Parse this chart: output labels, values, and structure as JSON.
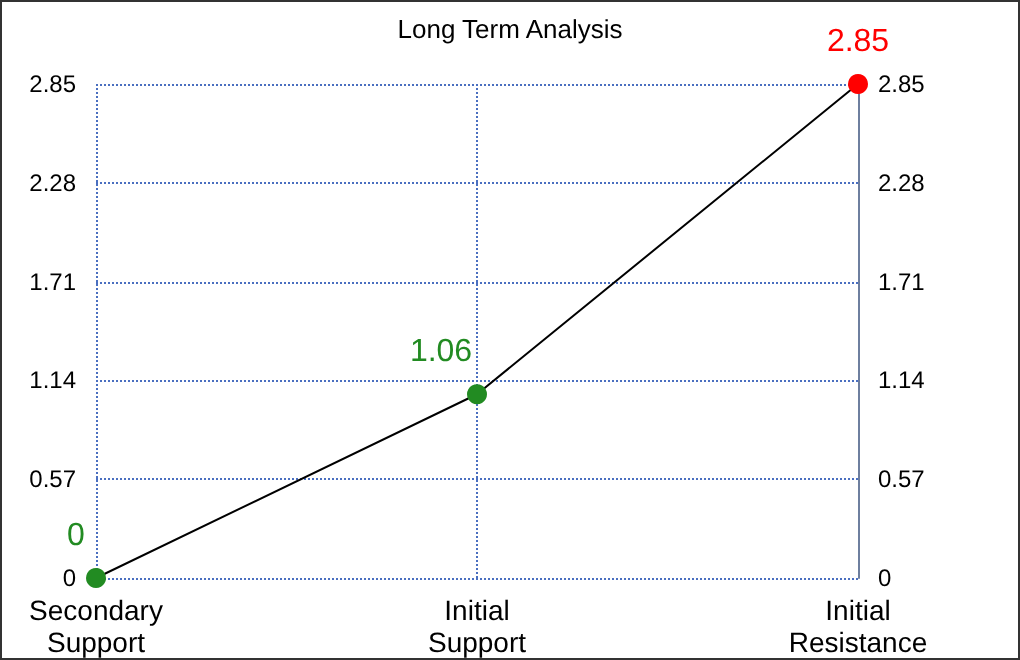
{
  "chart_data": {
    "type": "line",
    "title": "Long Term Analysis",
    "categories": [
      "Secondary Support",
      "Initial Support",
      "Initial Resistance"
    ],
    "series": [
      {
        "color": "#000000",
        "colors": [
          "#228b22",
          "#228b22",
          "#ff0000"
        ],
        "values": [
          0,
          1.06,
          2.85
        ]
      }
    ],
    "data_labels": true,
    "ylim": [
      0,
      2.85
    ],
    "yticks": [
      0,
      0.57,
      1.14,
      1.71,
      2.28,
      2.85
    ],
    "y2lim": [
      0,
      2.85
    ],
    "y2ticks": [
      0,
      0.57,
      1.14,
      1.71,
      2.28,
      2.85
    ],
    "grid": true,
    "marker": "circle",
    "line_style": "solid"
  }
}
